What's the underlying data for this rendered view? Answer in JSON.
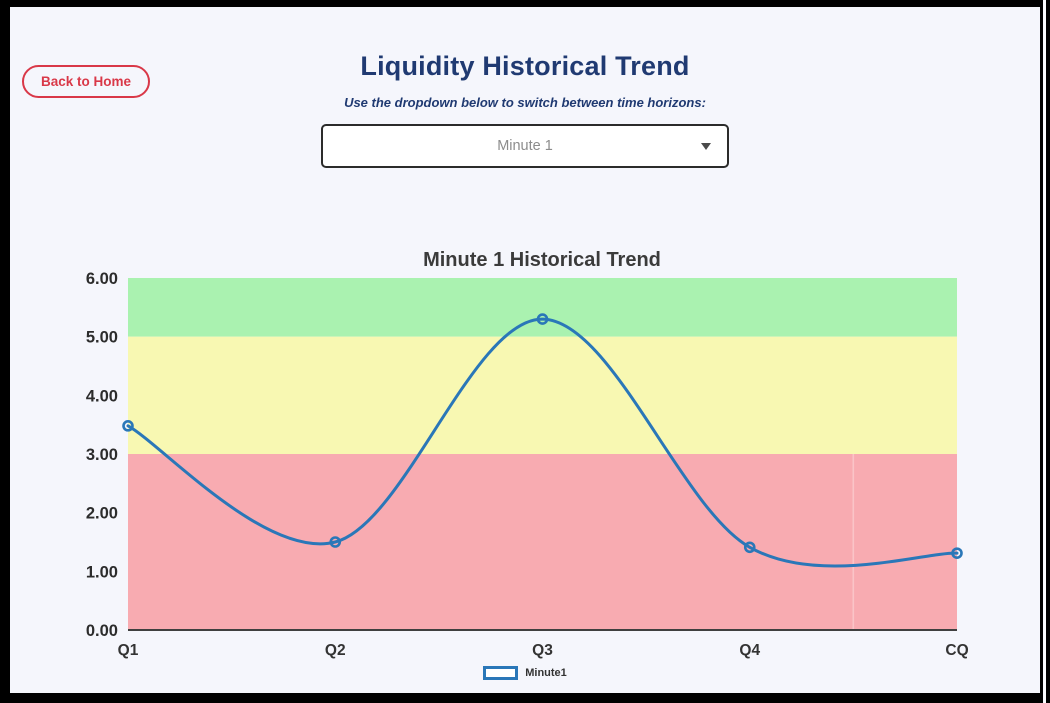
{
  "page": {
    "back_button_label": "Back to Home",
    "title": "Liquidity Historical Trend",
    "subtitle": "Use the dropdown below to switch between time horizons:",
    "dropdown": {
      "selected_value": "Minute 1"
    }
  },
  "colors": {
    "accent_red": "#d93848",
    "title_navy": "#203a72",
    "line_blue": "#2a77b8",
    "band_green": "#aaf2b0",
    "band_yellow": "#f8f8b2",
    "band_red": "#f8abb1",
    "page_background": "#f5f6fc",
    "frame": "#000000"
  },
  "chart_data": {
    "type": "line",
    "title": "Minute 1 Historical Trend",
    "categories": [
      "Q1",
      "Q2",
      "Q3",
      "Q4",
      "CQ"
    ],
    "series": [
      {
        "name": "Minute1",
        "values": [
          3.48,
          1.5,
          5.3,
          1.41,
          1.31
        ],
        "color": "#2a77b8"
      }
    ],
    "ylim": [
      0,
      6
    ],
    "ytick_interval": 1,
    "ytick_labels": [
      "0.00",
      "1.00",
      "2.00",
      "3.00",
      "4.00",
      "5.00",
      "6.00"
    ],
    "grid": false,
    "smooth": true,
    "marker": "open-circle",
    "legend": [
      {
        "label": "Minute1",
        "color": "#2a77b8"
      }
    ],
    "legend_position": "bottom",
    "bands": [
      {
        "from": 5,
        "to": 6,
        "color": "#aaf2b0",
        "name": "green-zone"
      },
      {
        "from": 3,
        "to": 5,
        "color": "#f8f8b2",
        "name": "yellow-zone"
      },
      {
        "from": 0,
        "to": 3,
        "color": "#f8abb1",
        "name": "red-zone"
      }
    ]
  }
}
